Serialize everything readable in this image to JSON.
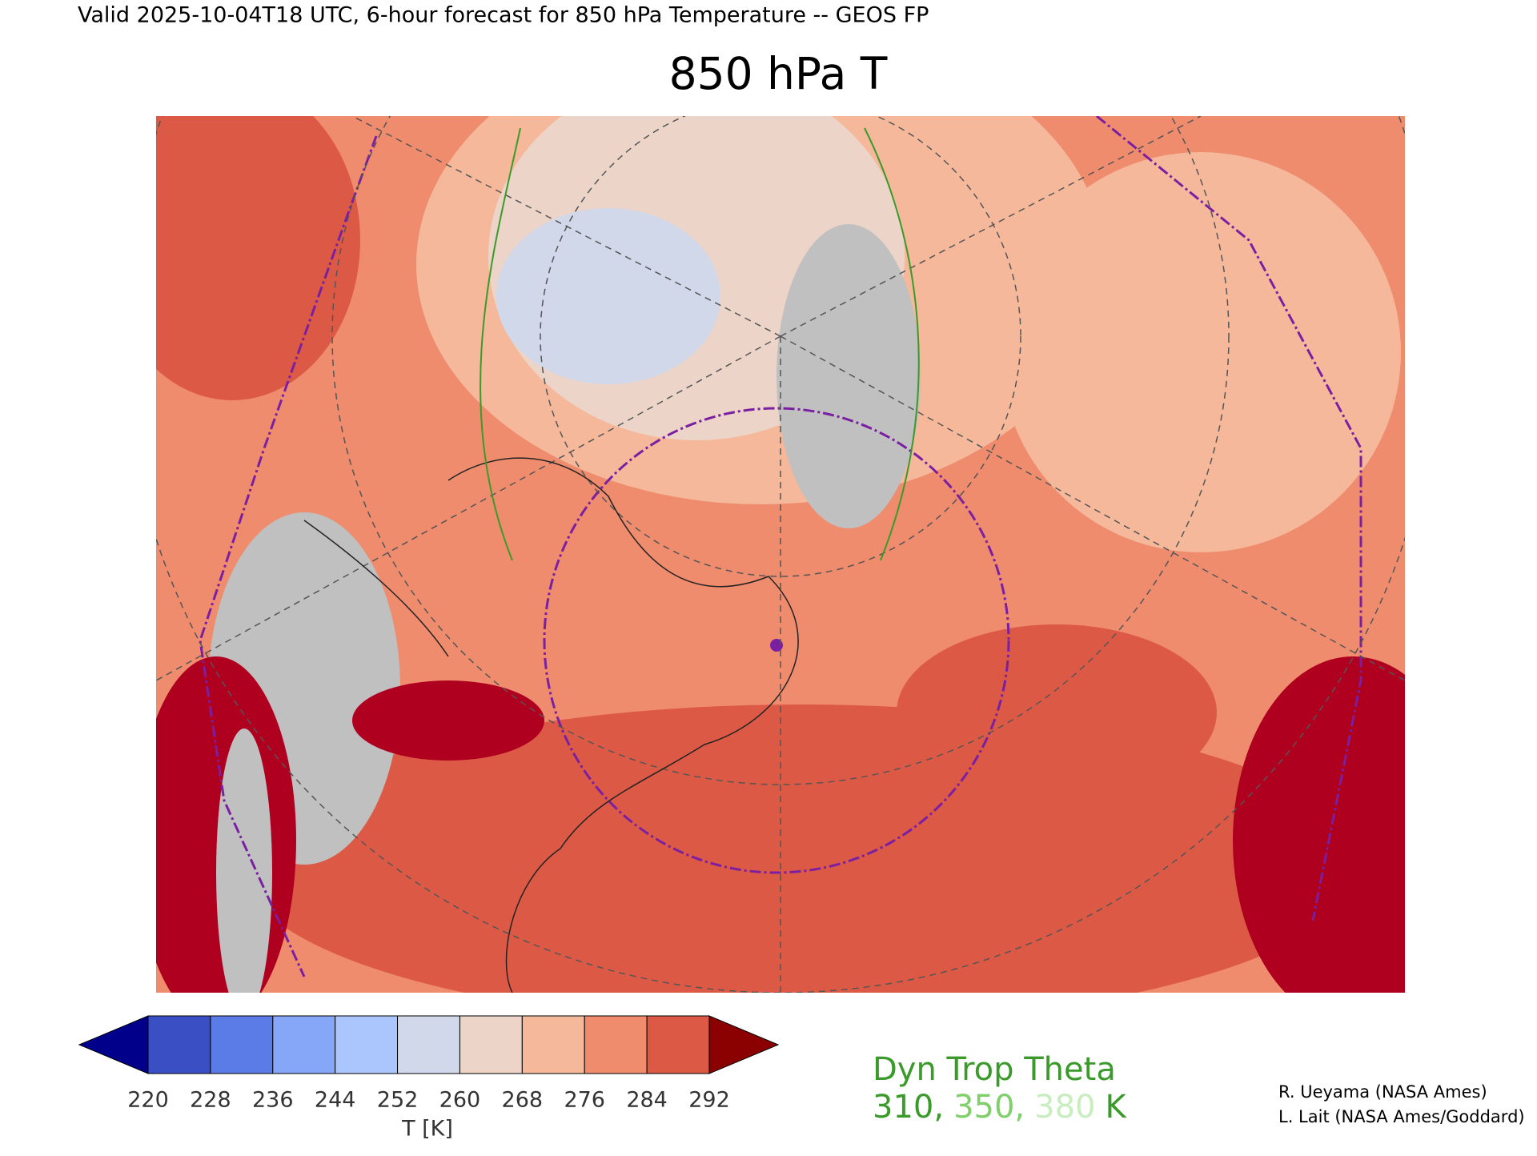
{
  "header": {
    "valid": "Valid 2025-10-04T18 UTC, 6-hour forecast for 850 hPa Temperature -- GEOS FP",
    "title": "850 hPa T"
  },
  "colorbar": {
    "levels": [
      220,
      228,
      236,
      244,
      252,
      260,
      268,
      276,
      284,
      292
    ],
    "colors": [
      "#3a4fc4",
      "#5b7be6",
      "#86a6f8",
      "#aac6fc",
      "#d0d8ea",
      "#ecd4c8",
      "#f5b89a",
      "#ef8c6e",
      "#dc5a45"
    ],
    "under_color": "#00008b",
    "over_color": "#8b0000",
    "label": "T [K]"
  },
  "legend": {
    "title": "Dyn Trop Theta",
    "items": [
      {
        "text": "310,",
        "color": "#3a9a2a"
      },
      {
        "text": "350,",
        "color": "#7fcf6a"
      },
      {
        "text": "380",
        "color": "#c8eec0"
      }
    ],
    "unit": "K"
  },
  "credits": [
    "R. Ueyama (NASA Ames)",
    "L. Lait (NASA Ames/Goddard)"
  ]
}
